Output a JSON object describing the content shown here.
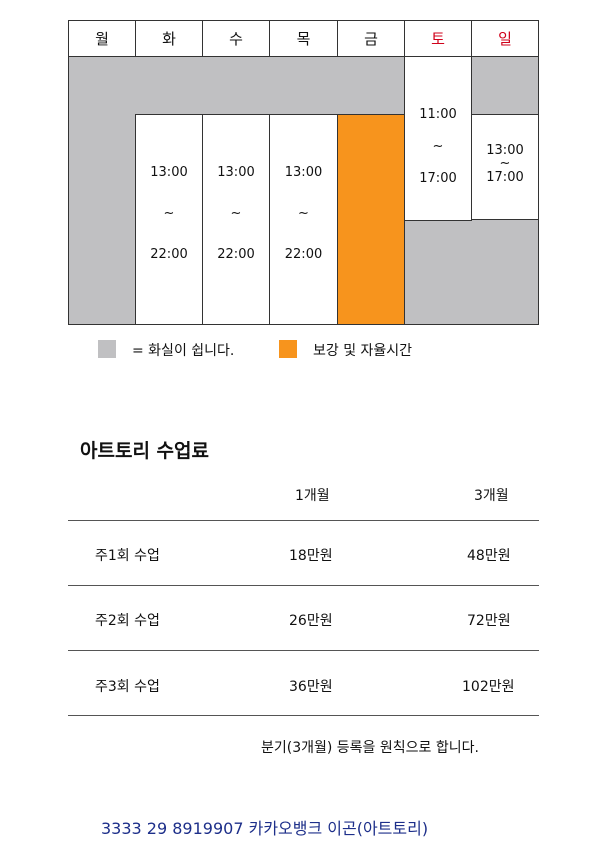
{
  "schedule": {
    "days": [
      "월",
      "화",
      "수",
      "목",
      "금",
      "토",
      "일"
    ],
    "weekday_slot": {
      "start": "13:00",
      "sep": "~",
      "end": "22:00"
    },
    "saturday_slot": {
      "start": "11:00",
      "sep": "~",
      "end": "17:00"
    },
    "sunday_slot": {
      "start": "13:00",
      "sep": "~",
      "end": "17:00"
    },
    "colors": {
      "closed": "#c0c0c2",
      "makeup": "#f7941d",
      "weekend_text": "#d0021b"
    }
  },
  "legend": {
    "closed_label": "= 화실이 쉽니다.",
    "makeup_label": "보강 및 자율시간"
  },
  "fees": {
    "title": "아트토리 수업료",
    "headers": [
      "1개월",
      "3개월"
    ],
    "rows": [
      {
        "label": "주1회 수업",
        "one_month": "18만원",
        "three_months": "48만원"
      },
      {
        "label": "주2회 수업",
        "one_month": "26만원",
        "three_months": "72만원"
      },
      {
        "label": "주3회 수업",
        "one_month": "36만원",
        "three_months": "102만원"
      }
    ],
    "note": "분기(3개월) 등록을 원칙으로 합니다."
  },
  "account": {
    "text": "3333 29 8919907 카카오뱅크 이곤(아트토리)"
  }
}
